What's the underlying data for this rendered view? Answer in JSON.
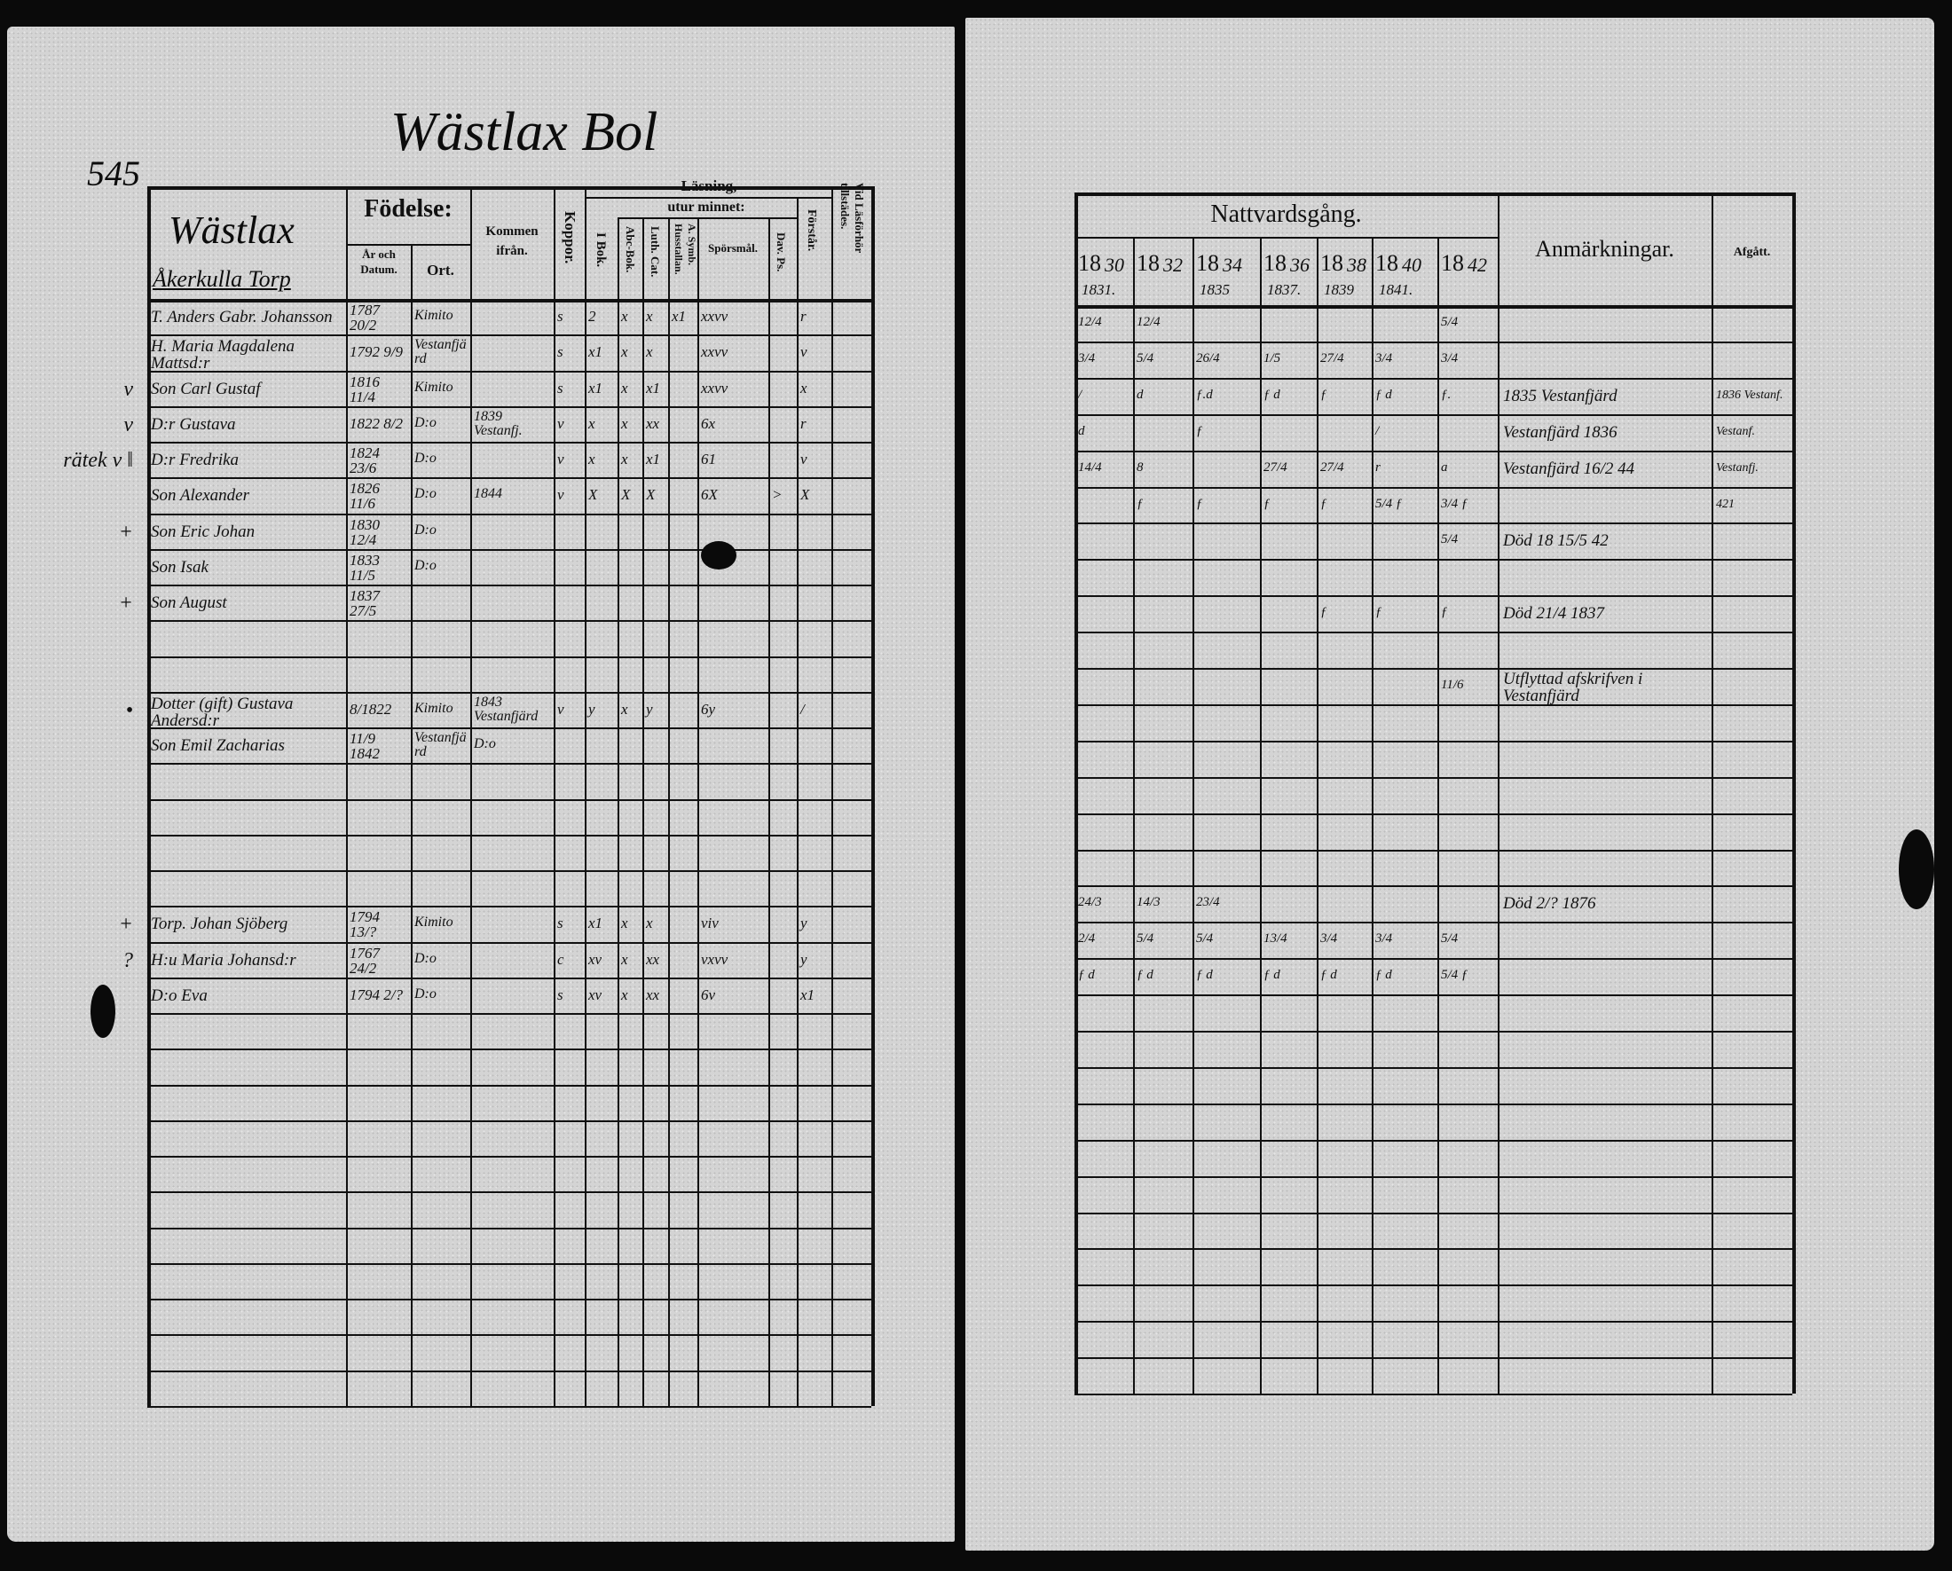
{
  "page_number": "545",
  "place_title": "Wästlax Bol",
  "left_table": {
    "section_heading": {
      "line1": "Wästlax",
      "line2": "Åkerkulla Torp"
    },
    "headers": {
      "fodelse": "Födelse:",
      "ar_och_datum": "År och Datum.",
      "ort": "Ort.",
      "kommen_ifran": "Kommen ifrån.",
      "koppor": "Koppor.",
      "lasning": "Läsning,",
      "utur_minnet": "utur minnet:",
      "i_bok": "I Bok.",
      "abc_bok": "Abc-Bok.",
      "luth_cat": "Luth. Cat.",
      "a_symb": "A. Symb. Husstallan.",
      "sporsmal": "Spörsmål.",
      "dav_ps": "Dav. Ps.",
      "forstar": "Förstår.",
      "vid_lasforhor": "Vid Läsförhör tillstädes."
    },
    "rows": [
      {
        "name": "T. Anders Gabr. Johansson",
        "year": "1787 20/2",
        "ort": "Kimito",
        "koppor": "s",
        "ibok": "2",
        "abc": "x",
        "luth": "x",
        "symb": "x1",
        "spors": "xxvv",
        "forstar": "r"
      },
      {
        "name": "H. Maria Magdalena Mattsd:r",
        "year": "1792 9/9",
        "ort": "Vestanfjärd",
        "koppor": "s",
        "ibok": "x1",
        "abc": "x",
        "luth": "x",
        "spors": "xxvv",
        "forstar": "v"
      },
      {
        "margin": "v",
        "name": "Son Carl Gustaf",
        "year": "1816 11/4",
        "ort": "Kimito",
        "koppor": "s",
        "ibok": "x1",
        "abc": "x",
        "luth": "x1",
        "spors": "xxvv",
        "forstar": "x"
      },
      {
        "margin": "v",
        "name": "D:r Gustava",
        "year": "1822 8/2",
        "ort": "D:o",
        "kommen": "1839 Vestanfj.",
        "koppor": "v",
        "ibok": "x",
        "abc": "x",
        "luth": "xx",
        "spors": "6x",
        "forstar": "r"
      },
      {
        "margin": "rätek v ‖",
        "name": "D:r Fredrika",
        "year": "1824 23/6",
        "ort": "D:o",
        "koppor": "v",
        "ibok": "x",
        "abc": "x",
        "luth": "x1",
        "spors": "61",
        "forstar": "v"
      },
      {
        "name": "Son Alexander",
        "year": "1826 11/6",
        "ort": "D:o",
        "kommen": "1844",
        "koppor": "v",
        "ibok": "X",
        "abc": "X",
        "luth": "X",
        "spors": "6X",
        "dav": ">",
        "forstar": "X"
      },
      {
        "margin": "+",
        "name": "Son Eric Johan",
        "year": "1830 12/4",
        "ort": "D:o"
      },
      {
        "name": "Son Isak",
        "year": "1833 11/5",
        "ort": "D:o"
      },
      {
        "margin": "+",
        "name": "Son August",
        "year": "1837 27/5"
      },
      null,
      null,
      {
        "margin": "•",
        "name": "Dotter (gift) Gustava Andersd:r",
        "year": "8/1822",
        "ort": "Kimito",
        "kommen": "1843 Vestanfjärd",
        "koppor": "v",
        "ibok": "y",
        "abc": "x",
        "luth": "y",
        "spors": "6y",
        "forstar": "/"
      },
      {
        "name": "Son Emil Zacharias",
        "year": "11/9 1842",
        "ort": "Vestanfjärd",
        "kommen": "D:o"
      },
      null,
      null,
      null,
      null,
      {
        "margin": "+",
        "name": "Torp. Johan Sjöberg",
        "year": "1794 13/?",
        "ort": "Kimito",
        "koppor": "s",
        "ibok": "x1",
        "abc": "x",
        "luth": "x",
        "spors": "viv",
        "forstar": "y"
      },
      {
        "margin": "?",
        "name": "H:u Maria Johansd:r",
        "year": "1767 24/2",
        "ort": "D:o",
        "koppor": "c",
        "ibok": "xv",
        "abc": "x",
        "luth": "xx",
        "spors": "vxvv",
        "forstar": "y"
      },
      {
        "name": "D:o Eva",
        "year": "1794 2/?",
        "ort": "D:o",
        "koppor": "s",
        "ibok": "xv",
        "abc": "x",
        "luth": "xx",
        "spors": "6v",
        "forstar": "x1"
      },
      null,
      null,
      null,
      null,
      null,
      null,
      null,
      null,
      null,
      null,
      null
    ]
  },
  "right_table": {
    "headers": {
      "nattvardsgang": "Nattvardsgång.",
      "anmarkningar": "Anmärkningar.",
      "afgatt": "Afgått."
    },
    "years": [
      {
        "printed": "18",
        "hand": "30",
        "below": "1831."
      },
      {
        "printed": "18",
        "hand": "32",
        "below": ""
      },
      {
        "printed": "18",
        "hand": "34",
        "below": "1835"
      },
      {
        "printed": "18",
        "hand": "36",
        "below": "1837."
      },
      {
        "printed": "18",
        "hand": "38",
        "below": "1839"
      },
      {
        "printed": "18",
        "hand": "40",
        "below": "1841."
      },
      {
        "printed": "18",
        "hand": "42",
        "below": ""
      }
    ],
    "rows": [
      {
        "nv": [
          "12/4",
          "12/4",
          "",
          "",
          "",
          "",
          "5/4"
        ]
      },
      {
        "nv": [
          "3/4",
          "5/4",
          "26/4",
          "1/5",
          "27/4",
          "3/4",
          "3/4"
        ]
      },
      {
        "nv": [
          "/",
          "d",
          "ƒ.d",
          "ƒ d",
          "ƒ",
          "ƒ d",
          "ƒ."
        ],
        "anm": "1835 Vestanfjärd",
        "afg": "1836 Vestanf."
      },
      {
        "nv": [
          "d",
          "",
          "ƒ",
          "",
          "",
          "/",
          ""
        ],
        "anm": "Vestanfjärd 1836",
        "afg": "Vestanf."
      },
      {
        "nv": [
          "14/4",
          "8",
          "",
          "27/4",
          "27/4",
          "r",
          "a"
        ],
        "anm": "Vestanfjärd 16/2 44",
        "afg": "Vestanfj."
      },
      {
        "nv": [
          "",
          "ƒ",
          "ƒ",
          "ƒ",
          "ƒ",
          "5/4 ƒ",
          "3/4 ƒ"
        ],
        "afg": "421"
      },
      {
        "nv": [
          "",
          "",
          "",
          "",
          "",
          "",
          "5/4"
        ],
        "anm": "Död 18 15/5 42"
      },
      {
        "nv": [
          "",
          "",
          "",
          "",
          "",
          "",
          ""
        ]
      },
      {
        "nv": [
          "",
          "",
          "",
          "",
          "ƒ",
          "ƒ",
          "ƒ"
        ],
        "anm": "Död 21/4 1837"
      },
      null,
      {
        "nv": [
          "",
          "",
          "",
          "",
          "",
          "",
          "11/6"
        ],
        "anm": "Utflyttad afskrifven i Vestanfjärd"
      },
      null,
      null,
      null,
      null,
      null,
      {
        "nv": [
          "24/3",
          "14/3",
          "23/4",
          "",
          "",
          "",
          ""
        ],
        "anm": "Död 2/? 1876"
      },
      {
        "nv": [
          "2/4",
          "5/4",
          "5/4",
          "13/4",
          "3/4",
          "3/4",
          "5/4"
        ]
      },
      {
        "nv": [
          "ƒ d",
          "ƒ d",
          "ƒ d",
          "ƒ d",
          "ƒ d",
          "ƒ d",
          "5/4 ƒ"
        ]
      },
      null,
      null,
      null,
      null,
      null,
      null,
      null,
      null,
      null,
      null,
      null
    ]
  }
}
